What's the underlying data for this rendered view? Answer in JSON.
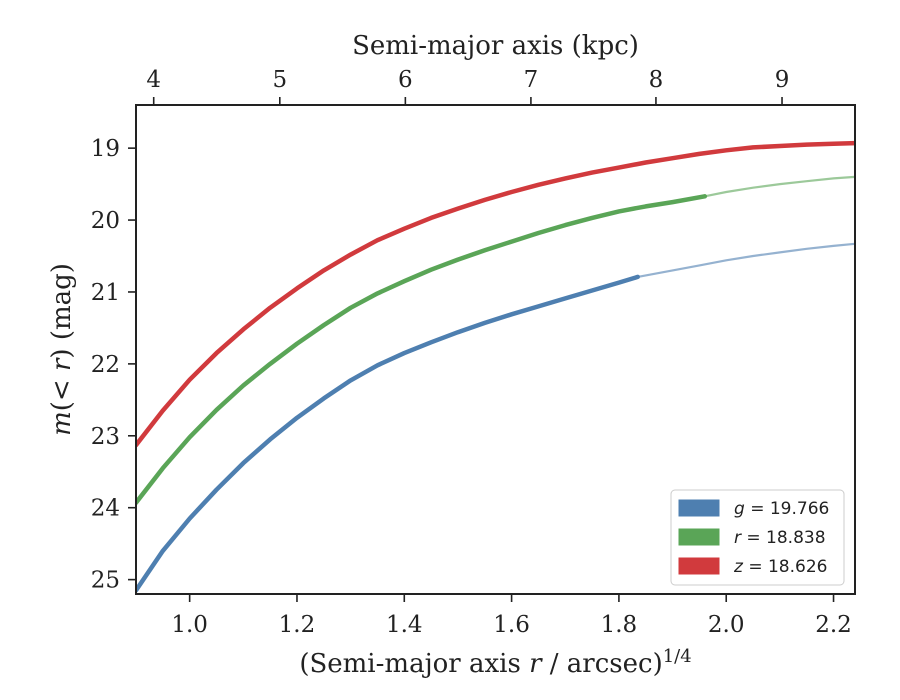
{
  "chart_data": {
    "type": "line",
    "xlabel_prefix": "(Semi-major axis ",
    "xlabel_var": "r",
    "xlabel_suffix": " / arcsec)",
    "xlabel_sup": "1/4",
    "top_xlabel": "Semi-major axis (kpc)",
    "ylabel_var": "m",
    "ylabel_mid": "(< ",
    "ylabel_var2": "r",
    "ylabel_end": ") (mag)",
    "xlim": [
      0.9,
      2.24
    ],
    "ylim": [
      25.2,
      18.4
    ],
    "y_inverted": true,
    "x_ticks": [
      1.0,
      1.2,
      1.4,
      1.6,
      1.8,
      2.0,
      2.2
    ],
    "x_tick_labels": [
      "1.0",
      "1.2",
      "1.4",
      "1.6",
      "1.8",
      "2.0",
      "2.2"
    ],
    "y_ticks": [
      19,
      20,
      21,
      22,
      23,
      24,
      25
    ],
    "y_tick_labels": [
      "19",
      "20",
      "21",
      "22",
      "23",
      "24",
      "25"
    ],
    "top_x_ticks": [
      {
        "label": "4",
        "x": 0.933
      },
      {
        "label": "5",
        "x": 1.168
      },
      {
        "label": "6",
        "x": 1.402
      },
      {
        "label": "7",
        "x": 1.636
      },
      {
        "label": "8",
        "x": 1.869
      },
      {
        "label": "9",
        "x": 2.104
      }
    ],
    "legend_position": "lower-right",
    "grid": false,
    "series": [
      {
        "name": "g = 19.766",
        "label_var": "g",
        "label_value": " = 19.766",
        "color": "#4e7fb0",
        "x": [
          0.9,
          0.95,
          1.0,
          1.05,
          1.1,
          1.15,
          1.2,
          1.25,
          1.3,
          1.35,
          1.4,
          1.45,
          1.5,
          1.55,
          1.6,
          1.65,
          1.7,
          1.75,
          1.8,
          1.835
        ],
        "y": [
          25.15,
          24.6,
          24.15,
          23.75,
          23.38,
          23.05,
          22.75,
          22.48,
          22.23,
          22.02,
          21.85,
          21.7,
          21.56,
          21.43,
          21.31,
          21.2,
          21.09,
          20.98,
          20.87,
          20.79
        ],
        "ext_x": [
          1.835,
          1.9,
          1.95,
          2.0,
          2.05,
          2.1,
          2.15,
          2.2,
          2.24
        ],
        "ext_y": [
          20.79,
          20.7,
          20.63,
          20.56,
          20.5,
          20.45,
          20.4,
          20.36,
          20.33
        ]
      },
      {
        "name": "r = 18.838",
        "label_var": "r",
        "label_value": " = 18.838",
        "color": "#5aa557",
        "x": [
          0.9,
          0.95,
          1.0,
          1.05,
          1.1,
          1.15,
          1.2,
          1.25,
          1.3,
          1.35,
          1.4,
          1.45,
          1.5,
          1.55,
          1.6,
          1.65,
          1.7,
          1.75,
          1.8,
          1.85,
          1.9,
          1.96
        ],
        "y": [
          23.93,
          23.45,
          23.02,
          22.64,
          22.3,
          22.0,
          21.72,
          21.46,
          21.22,
          21.02,
          20.85,
          20.69,
          20.55,
          20.42,
          20.3,
          20.18,
          20.07,
          19.97,
          19.88,
          19.81,
          19.75,
          19.67
        ],
        "ext_x": [
          1.96,
          2.0,
          2.05,
          2.1,
          2.15,
          2.2,
          2.24
        ],
        "ext_y": [
          19.67,
          19.61,
          19.55,
          19.5,
          19.46,
          19.42,
          19.4
        ]
      },
      {
        "name": "z = 18.626",
        "label_var": "z",
        "label_value": " = 18.626",
        "color": "#d13a3d",
        "x": [
          0.9,
          0.95,
          1.0,
          1.05,
          1.1,
          1.15,
          1.2,
          1.25,
          1.3,
          1.35,
          1.4,
          1.45,
          1.5,
          1.55,
          1.6,
          1.65,
          1.7,
          1.75,
          1.8,
          1.85,
          1.9,
          1.95,
          2.0,
          2.05,
          2.1,
          2.15,
          2.2,
          2.24
        ],
        "y": [
          23.13,
          22.65,
          22.22,
          21.85,
          21.52,
          21.22,
          20.95,
          20.7,
          20.48,
          20.28,
          20.12,
          19.97,
          19.84,
          19.72,
          19.61,
          19.51,
          19.42,
          19.34,
          19.27,
          19.2,
          19.14,
          19.08,
          19.03,
          18.99,
          18.97,
          18.95,
          18.94,
          18.93
        ],
        "ext_x": [],
        "ext_y": []
      }
    ]
  }
}
